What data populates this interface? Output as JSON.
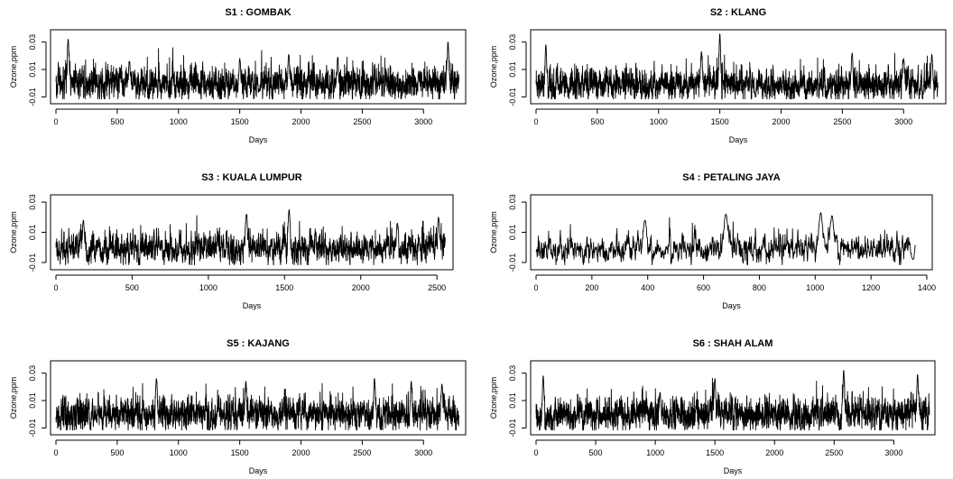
{
  "chart_data": [
    {
      "type": "line",
      "title": "S1 : GOMBAK",
      "xlabel": "Days",
      "ylabel": "Ozone,ppm",
      "xlim": [
        0,
        3300
      ],
      "ylim": [
        -0.013,
        0.037
      ],
      "xticks": [
        0,
        500,
        1000,
        1500,
        2000,
        2500,
        3000
      ],
      "xtick_labels": [
        "0",
        "500",
        "1000",
        "1500",
        "2000",
        "2500",
        "3000"
      ],
      "yticks": [
        -0.01,
        0.01,
        0.03
      ],
      "ytick_labels": [
        "-0.01",
        "0.01",
        "0.03"
      ],
      "n_points": 3290,
      "series": [
        {
          "name": "",
          "color": "#000000",
          "baseline": 0.0,
          "noise_sd": 0.0055,
          "peaks": [
            [
              100,
              0.032
            ],
            [
              600,
              0.016
            ],
            [
              1500,
              0.018
            ],
            [
              1660,
              -0.006
            ],
            [
              1900,
              0.021
            ],
            [
              2300,
              0.019
            ],
            [
              3200,
              0.03
            ]
          ]
        }
      ]
    },
    {
      "type": "line",
      "title": "S2 : KLANG",
      "xlabel": "Days",
      "ylabel": "Ozone,ppm",
      "xlim": [
        0,
        3300
      ],
      "ylim": [
        -0.013,
        0.037
      ],
      "xticks": [
        0,
        500,
        1000,
        1500,
        2000,
        2500,
        3000
      ],
      "xtick_labels": [
        "0",
        "500",
        "1000",
        "1500",
        "2000",
        "2500",
        "3000"
      ],
      "yticks": [
        -0.01,
        0.01,
        0.03
      ],
      "ytick_labels": [
        "-0.01",
        "0.01",
        "0.03"
      ],
      "n_points": 3280,
      "series": [
        {
          "name": "",
          "color": "#000000",
          "baseline": -0.001,
          "noise_sd": 0.005,
          "peaks": [
            [
              80,
              0.028
            ],
            [
              1350,
              0.023
            ],
            [
              1500,
              0.036
            ],
            [
              1790,
              -0.01
            ],
            [
              2580,
              0.022
            ],
            [
              3000,
              0.018
            ],
            [
              3230,
              0.021
            ]
          ]
        }
      ]
    },
    {
      "type": "line",
      "title": "S3 : KUALA LUMPUR",
      "xlabel": "Days",
      "ylabel": "Ozone,ppm",
      "xlim": [
        0,
        2570
      ],
      "ylim": [
        -0.013,
        0.033
      ],
      "xticks": [
        0,
        500,
        1000,
        1500,
        2000,
        2500
      ],
      "xtick_labels": [
        "0",
        "500",
        "1000",
        "1500",
        "2000",
        "2500"
      ],
      "yticks": [
        -0.01,
        0.01,
        0.03
      ],
      "ytick_labels": [
        "-0.01",
        "0.01",
        "0.03"
      ],
      "n_points": 2555,
      "series": [
        {
          "name": "",
          "color": "#000000",
          "baseline": -0.001,
          "noise_sd": 0.0048,
          "peaks": [
            [
              180,
              0.018
            ],
            [
              1250,
              0.022
            ],
            [
              1530,
              0.025
            ],
            [
              2240,
              0.016
            ],
            [
              2510,
              0.02
            ]
          ]
        }
      ]
    },
    {
      "type": "line",
      "title": "S4 : PETALING JAYA",
      "xlabel": "Days",
      "ylabel": "Ozone,ppm",
      "xlim": [
        0,
        1400
      ],
      "ylim": [
        -0.013,
        0.033
      ],
      "xticks": [
        0,
        200,
        400,
        600,
        800,
        1000,
        1200,
        1400
      ],
      "xtick_labels": [
        "0",
        "200",
        "400",
        "600",
        "800",
        "1000",
        "1200",
        "1400"
      ],
      "yticks": [
        -0.01,
        0.01,
        0.03
      ],
      "ytick_labels": [
        "-0.01",
        "0.01",
        "0.03"
      ],
      "n_points": 1360,
      "series": [
        {
          "name": "",
          "color": "#000000",
          "baseline": -0.001,
          "noise_sd": 0.0045,
          "peaks": [
            [
              390,
              0.018
            ],
            [
              680,
              0.022
            ],
            [
              1020,
              0.023
            ],
            [
              1060,
              0.021
            ],
            [
              1350,
              -0.008
            ]
          ]
        }
      ]
    },
    {
      "type": "line",
      "title": "S5 : KAJANG",
      "xlabel": "Days",
      "ylabel": "Ozone,ppm",
      "xlim": [
        0,
        3300
      ],
      "ylim": [
        -0.013,
        0.037
      ],
      "xticks": [
        0,
        500,
        1000,
        1500,
        2000,
        2500,
        3000
      ],
      "xtick_labels": [
        "0",
        "500",
        "1000",
        "1500",
        "2000",
        "2500",
        "3000"
      ],
      "yticks": [
        -0.01,
        0.01,
        0.03
      ],
      "ytick_labels": [
        "-0.01",
        "0.01",
        "0.03"
      ],
      "n_points": 3290,
      "series": [
        {
          "name": "",
          "color": "#000000",
          "baseline": 0.0,
          "noise_sd": 0.0055,
          "peaks": [
            [
              820,
              0.026
            ],
            [
              1550,
              0.024
            ],
            [
              2600,
              0.026
            ],
            [
              2900,
              0.024
            ],
            [
              3150,
              0.022
            ]
          ]
        }
      ]
    },
    {
      "type": "line",
      "title": "S6 : SHAH ALAM",
      "xlabel": "Days",
      "ylabel": "Ozone,ppm",
      "xlim": [
        0,
        3300
      ],
      "ylim": [
        -0.013,
        0.037
      ],
      "xticks": [
        0,
        500,
        1000,
        1500,
        2000,
        2500,
        3000
      ],
      "xtick_labels": [
        "0",
        "500",
        "1000",
        "1500",
        "2000",
        "2500",
        "3000"
      ],
      "yticks": [
        -0.01,
        0.01,
        0.03
      ],
      "ytick_labels": [
        "-0.01",
        "0.01",
        "0.03"
      ],
      "n_points": 3300,
      "series": [
        {
          "name": "",
          "color": "#000000",
          "baseline": 0.0,
          "noise_sd": 0.0055,
          "peaks": [
            [
              60,
              0.028
            ],
            [
              1500,
              0.026
            ],
            [
              2580,
              0.032
            ],
            [
              3200,
              0.029
            ],
            [
              1040,
              0.016
            ]
          ]
        }
      ]
    }
  ]
}
